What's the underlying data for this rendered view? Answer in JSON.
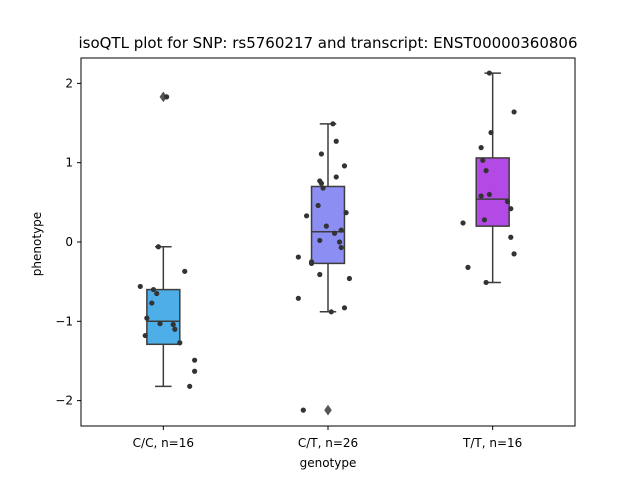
{
  "chart_data": {
    "type": "box",
    "title": "isoQTL plot for SNP: rs5760217 and transcript: ENST00000360806",
    "xlabel": "genotype",
    "ylabel": "phenotype",
    "ylim": [
      -2.32,
      2.32
    ],
    "yticks": [
      -2,
      -1,
      0,
      1,
      2
    ],
    "ytick_labels": [
      "−2",
      "−1",
      "0",
      "1",
      "2"
    ],
    "grid": false,
    "categories": [
      "C/C, n=16",
      "C/T, n=26",
      "T/T, n=16"
    ],
    "colors": [
      "#4eaee8",
      "#8c8ef4",
      "#b44ae6"
    ],
    "boxes": [
      {
        "category": "C/C, n=16",
        "q1": -1.29,
        "median": -1.0,
        "q3": -0.6,
        "whisker_low": -1.82,
        "whisker_high": -0.06,
        "outliers": [
          1.83
        ]
      },
      {
        "category": "C/T, n=26",
        "q1": -0.27,
        "median": 0.13,
        "q3": 0.7,
        "whisker_low": -0.88,
        "whisker_high": 1.49,
        "outliers": [
          -2.12
        ]
      },
      {
        "category": "T/T, n=16",
        "q1": 0.2,
        "median": 0.54,
        "q3": 1.06,
        "whisker_low": -0.51,
        "whisker_high": 2.13,
        "outliers": []
      }
    ],
    "points": [
      {
        "category": "C/C, n=16",
        "jitter": [
          0.02,
          -0.03,
          -0.14,
          0.13,
          -0.06,
          -0.04,
          -0.07,
          -0.1,
          -0.02,
          0.06,
          0.07,
          -0.11,
          0.1,
          0.19,
          0.19,
          0.16
        ],
        "values": [
          1.83,
          -0.06,
          -0.56,
          -0.37,
          -0.6,
          -0.65,
          -0.77,
          -0.96,
          -1.03,
          -1.04,
          -1.1,
          -1.18,
          -1.27,
          -1.49,
          -1.63,
          -1.82
        ]
      },
      {
        "category": "C/T, n=26",
        "jitter": [
          0.03,
          0.05,
          -0.04,
          -0.05,
          0.1,
          -0.03,
          -0.04,
          -0.13,
          -0.06,
          0.11,
          0.05,
          -0.01,
          0.08,
          0.04,
          -0.05,
          0.07,
          0.08,
          0.13,
          -0.18,
          -0.1,
          -0.18,
          -0.05,
          0.1,
          -0.15,
          0.02,
          -0.1
        ],
        "values": [
          1.49,
          1.27,
          1.11,
          0.77,
          0.96,
          0.68,
          0.74,
          0.33,
          0.46,
          0.37,
          0.82,
          0.2,
          0.15,
          0.11,
          0.02,
          0.0,
          -0.07,
          -0.46,
          -0.19,
          -0.27,
          -0.71,
          -0.41,
          -0.83,
          -2.12,
          -0.88,
          -0.25
        ]
      },
      {
        "category": "T/T, n=16",
        "jitter": [
          -0.02,
          0.13,
          -0.01,
          -0.07,
          -0.06,
          -0.04,
          -0.02,
          -0.07,
          0.09,
          -0.05,
          0.11,
          0.11,
          -0.18,
          -0.04,
          0.13,
          -0.15
        ],
        "values": [
          2.13,
          1.64,
          1.38,
          1.19,
          1.03,
          0.9,
          0.6,
          0.58,
          0.51,
          0.28,
          0.42,
          0.06,
          0.24,
          -0.51,
          -0.15,
          -0.32
        ]
      }
    ]
  }
}
